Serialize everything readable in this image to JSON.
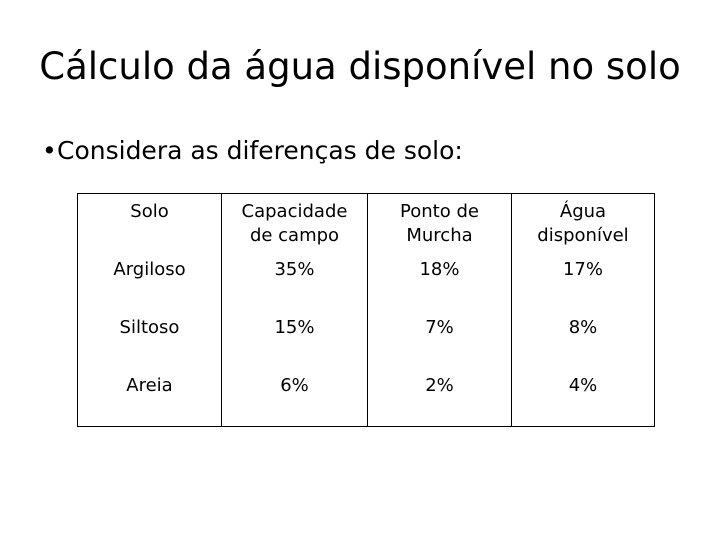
{
  "slide": {
    "title": "Cálculo da água disponível no solo",
    "bullet": "Considera as diferenças de solo:"
  },
  "table": {
    "headers": [
      [
        "Solo"
      ],
      [
        "Capacidade",
        "de campo"
      ],
      [
        "Ponto de",
        "Murcha"
      ],
      [
        "Água",
        "disponível"
      ]
    ],
    "rows": [
      [
        "Argiloso",
        "35%",
        "18%",
        "17%"
      ],
      [
        "Siltoso",
        "15%",
        "7%",
        "8%"
      ],
      [
        "Areia",
        "6%",
        "2%",
        "4%"
      ]
    ]
  }
}
